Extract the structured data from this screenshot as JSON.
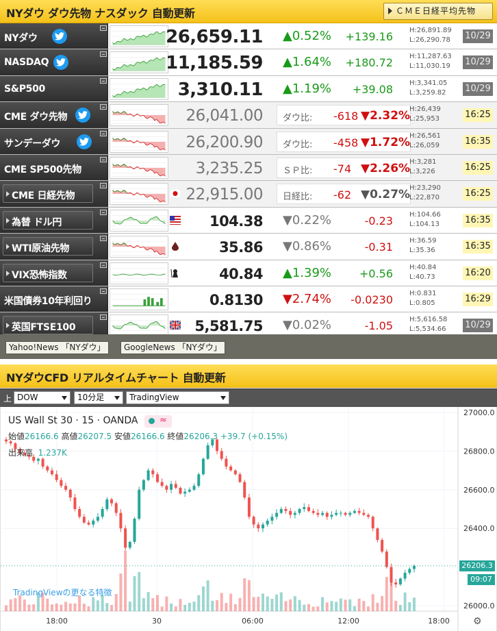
{
  "header1": {
    "title": "NYダウ ダウ先物 ナスダック 自動更新",
    "button": "ＣＭＥ日経平均先物"
  },
  "rows": [
    {
      "name": "NYダウ",
      "twitter": true,
      "button": false,
      "price": "26,659.11",
      "pct": "▲0.52%",
      "chg": "+139.16",
      "hi": "H:26,891.89",
      "lo": "L:26,290.78",
      "time": "10/29",
      "style": "up-big",
      "timeStyle": "gray",
      "spark": "up"
    },
    {
      "name": "NASDAQ",
      "twitter": true,
      "button": false,
      "price": "11,185.59",
      "pct": "▲1.64%",
      "chg": "+180.72",
      "hi": "H:11,287.63",
      "lo": "L:11,030.19",
      "time": "10/29",
      "style": "up-big",
      "timeStyle": "gray",
      "spark": "up"
    },
    {
      "name": "S&P500",
      "twitter": false,
      "button": false,
      "price": "3,310.11",
      "pct": "▲1.19%",
      "chg": "+39.08",
      "hi": "H:3,341.05",
      "lo": "L:3,259.82",
      "time": "10/29",
      "style": "up-big",
      "timeStyle": "gray",
      "spark": "up"
    },
    {
      "name": "CME ダウ先物",
      "twitter": true,
      "button": false,
      "price": "26,041.00",
      "ratioLabel": "ダウ比:",
      "ratioVal": "-618",
      "ratioPct": "▼2.32%",
      "hi": "H:26,439",
      "lo": "L:25,953",
      "time": "16:25",
      "style": "ratio",
      "timeStyle": "yellow",
      "spark": "down"
    },
    {
      "name": "サンデーダウ",
      "twitter": true,
      "button": false,
      "price": "26,200.90",
      "ratioLabel": "ダウ比:",
      "ratioVal": "-458",
      "ratioPct": "▼1.72%",
      "hi": "H:26,561",
      "lo": "L:26,059",
      "time": "16:35",
      "style": "ratio",
      "timeStyle": "yellow",
      "spark": "down"
    },
    {
      "name": "CME SP500先物",
      "twitter": false,
      "button": false,
      "price": "3,235.25",
      "ratioLabel": "ＳＰ比:",
      "ratioVal": "-74",
      "ratioPct": "▼2.26%",
      "hi": "H:3,281",
      "lo": "L:3,226",
      "time": "16:25",
      "style": "ratio",
      "timeStyle": "yellow",
      "spark": "down"
    },
    {
      "name": "CME 日経先物",
      "twitter": false,
      "button": true,
      "price": "22,915.00",
      "ratioLabel": "日経比:",
      "ratioVal": "-62",
      "ratioPct": "▼0.27%",
      "hi": "H:23,290",
      "lo": "L:22,870",
      "time": "16:25",
      "style": "ratio-gray",
      "timeStyle": "yellow",
      "spark": "down",
      "flag": "jp"
    },
    {
      "name": "為替 ドル円",
      "twitter": false,
      "button": true,
      "price": "104.38",
      "pct": "▼0.22%",
      "chg": "-0.23",
      "hi": "H:104.66",
      "lo": "L:104.13",
      "time": "16:35",
      "style": "gray-down",
      "timeStyle": "yellow",
      "spark": "mix",
      "flag": "us"
    },
    {
      "name": "WTI原油先物",
      "twitter": false,
      "button": true,
      "price": "35.86",
      "pct": "▼0.86%",
      "chg": "-0.31",
      "hi": "H:36.59",
      "lo": "L:35.36",
      "time": "16:35",
      "style": "gray-down",
      "timeStyle": "yellow",
      "spark": "down",
      "flag": "oil"
    },
    {
      "name": "VIX恐怖指数",
      "twitter": false,
      "button": true,
      "price": "40.84",
      "pct": "▲1.39%",
      "chg": "+0.56",
      "hi": "H:40.84",
      "lo": "L:40.73",
      "time": "16:20",
      "style": "small-up",
      "timeStyle": "yellow",
      "spark": "flat",
      "flag": "vix"
    },
    {
      "name": "米国債券10年利回り",
      "twitter": false,
      "button": false,
      "price": "0.8130",
      "pct": "▼2.74%",
      "chg": "-0.0230",
      "hi": "H:0.831",
      "lo": "L:0.805",
      "time": "16:29",
      "style": "small-down",
      "timeStyle": "yellow",
      "spark": "bars"
    },
    {
      "name": "英国FTSE100",
      "twitter": false,
      "button": true,
      "price": "5,581.75",
      "pct": "▼0.02%",
      "chg": "-1.05",
      "hi": "H:5,616.58",
      "lo": "L:5,534.66",
      "time": "10/29",
      "style": "gray-down",
      "timeStyle": "gray",
      "spark": "mix",
      "flag": "uk"
    }
  ],
  "news": {
    "yahoo": "Yahoo!News 「NYダウ」",
    "google": "GoogleNews 「NYダウ」"
  },
  "header2": {
    "title": "NYダウCFD リアルタイムチャート 自動更新"
  },
  "selectors": {
    "label": "上",
    "symbol": "DOW",
    "interval": "10分足",
    "provider": "TradingView"
  },
  "chart": {
    "symbolTitle": "US Wall St 30 · 15 · OANDA",
    "ohlc": {
      "open_label": "始値",
      "open": "26166.6",
      "high_label": "高値",
      "high": "26207.5",
      "low_label": "安値",
      "low": "26166.6",
      "close_label": "終値",
      "close": "26206.3",
      "change": "+39.7 (+0.15%)"
    },
    "volume_label": "出来高",
    "volume": "1.237K",
    "promo": "TradingViewの更なる特徴",
    "price_tag": "26206.3",
    "time_tag": "09:07",
    "y_ticks": [
      "27000.0",
      "26800.0",
      "26600.0",
      "26400.0",
      "26000.0"
    ],
    "x_ticks": [
      "18:00",
      "30",
      "06:00",
      "12:00",
      "18:00"
    ]
  },
  "chart_data": {
    "type": "candlestick",
    "title": "US Wall St 30 · 15 · OANDA",
    "ylim": [
      26000,
      27000
    ],
    "close_series": [
      26850,
      26840,
      26810,
      26790,
      26780,
      26770,
      26750,
      26760,
      26720,
      26700,
      26680,
      26650,
      26620,
      26600,
      26560,
      26500,
      26460,
      26430,
      26420,
      26440,
      26460,
      26500,
      26550,
      26530,
      26480,
      26400,
      26300,
      26330,
      26450,
      26600,
      26650,
      26700,
      26680,
      26640,
      26620,
      26600,
      26630,
      26610,
      26580,
      26590,
      26600,
      26620,
      26680,
      26760,
      26830,
      26860,
      26800,
      26760,
      26720,
      26700,
      26680,
      26640,
      26560,
      26460,
      26420,
      26400,
      26420,
      26440,
      26460,
      26480,
      26500,
      26490,
      26470,
      26480,
      26500,
      26510,
      26490,
      26480,
      26470,
      26480,
      26460,
      26470,
      26480,
      26480,
      26470,
      26480,
      26490,
      26480,
      26470,
      26460,
      26400,
      26340,
      26280,
      26200,
      26120,
      26110,
      26140,
      26170,
      26190,
      26206
    ]
  }
}
